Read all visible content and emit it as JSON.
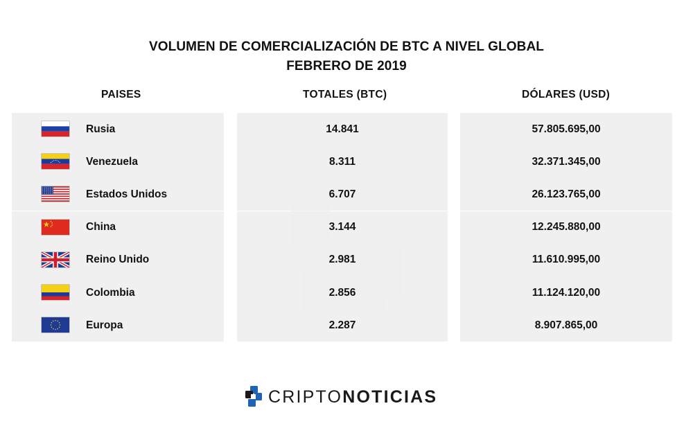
{
  "title": {
    "line1": "VOLUMEN DE COMERCIALIZACIÓN DE BTC A NIVEL GLOBAL",
    "line2": "FEBRERO DE 2019"
  },
  "headers": {
    "countries": "PAISES",
    "totals": "TOTALES (BTC)",
    "dollars": "DÓLARES (USD)"
  },
  "chart_data": {
    "type": "table",
    "title": "VOLUMEN DE COMERCIALIZACIÓN DE BTC A NIVEL GLOBAL",
    "subtitle": "FEBRERO DE 2019",
    "columns": [
      "PAISES",
      "TOTALES (BTC)",
      "DÓLARES (USD)"
    ],
    "rows": [
      {
        "flag": "russia-flag-icon",
        "country": "Rusia",
        "btc": "14.841",
        "usd": "57.805.695,00"
      },
      {
        "flag": "venezuela-flag-icon",
        "country": "Venezuela",
        "btc": "8.311",
        "usd": "32.371.345,00"
      },
      {
        "flag": "usa-flag-icon",
        "country": "Estados Unidos",
        "btc": "6.707",
        "usd": "26.123.765,00"
      },
      {
        "flag": "china-flag-icon",
        "country": "China",
        "btc": "3.144",
        "usd": "12.245.880,00"
      },
      {
        "flag": "uk-flag-icon",
        "country": "Reino Unido",
        "btc": "2.981",
        "usd": "11.610.995,00"
      },
      {
        "flag": "colombia-flag-icon",
        "country": "Colombia",
        "btc": "2.856",
        "usd": "11.124.120,00"
      },
      {
        "flag": "eu-flag-icon",
        "country": "Europa",
        "btc": "2.287",
        "usd": "8.907.865,00"
      }
    ]
  },
  "logo": {
    "part1": "CRIPTO",
    "part2": "NOTICIAS",
    "icon": "criptonoticias-logo-icon",
    "colors": {
      "blue": "#1f63b8",
      "dark": "#1a1a1a"
    }
  },
  "colors": {
    "row_bg": "#eeeeee",
    "text": "#111111"
  }
}
